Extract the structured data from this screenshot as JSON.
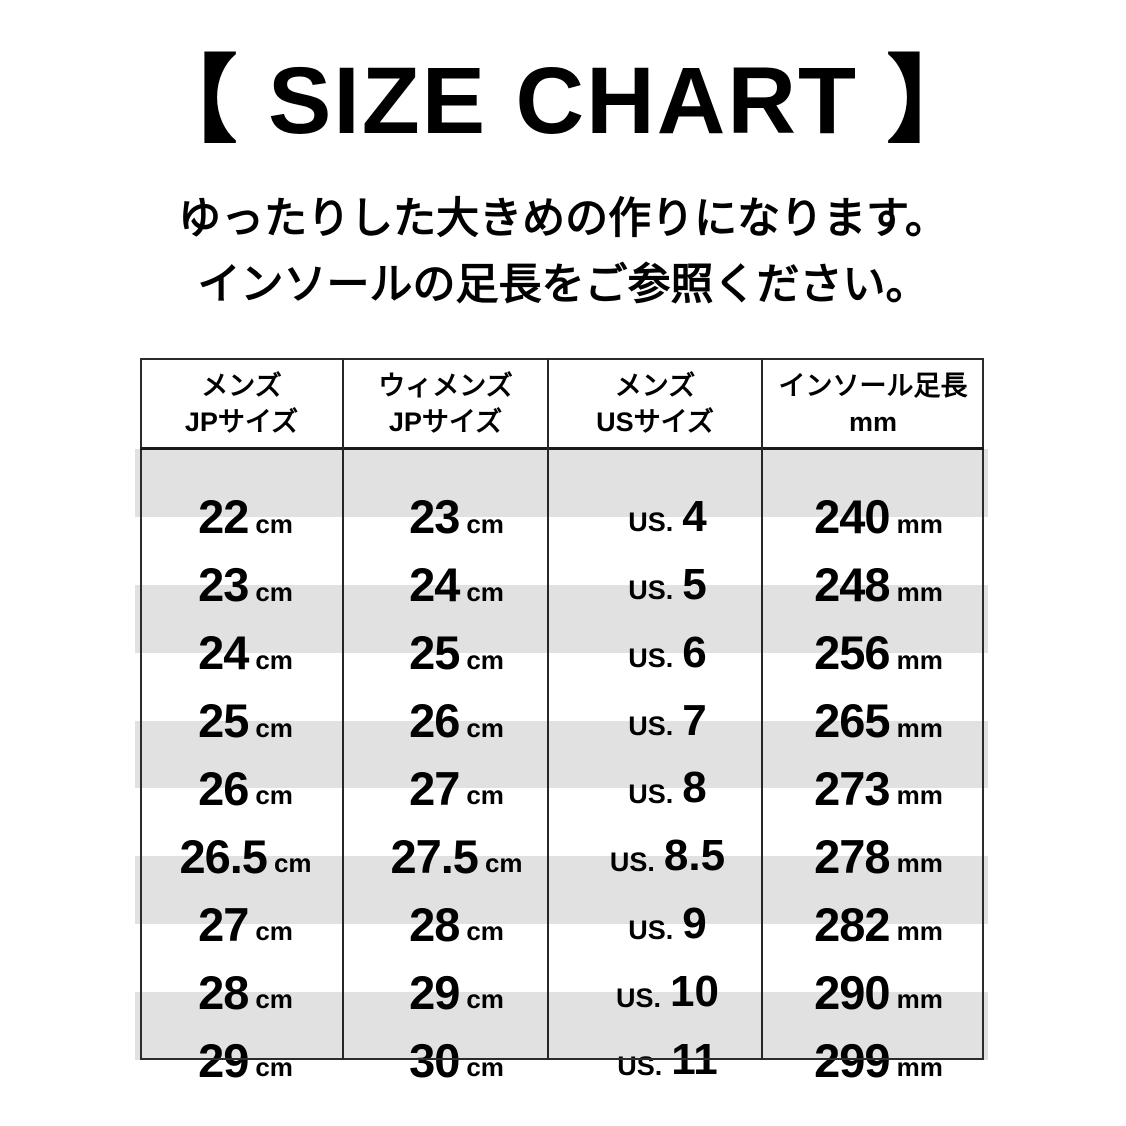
{
  "title": "【 SIZE CHART 】",
  "subtitle_lines": [
    "ゆったりした大きめの作りになります。",
    "インソールの足長をご参照ください。"
  ],
  "colors": {
    "background": "#ffffff",
    "stripe_gray": "#e1e1e1",
    "line_black": "#262626",
    "text": "#000000"
  },
  "table": {
    "headers": [
      {
        "line1": "メンズ",
        "line2": "JPサイズ"
      },
      {
        "line1": "ウィメンズ",
        "line2": "JPサイズ"
      },
      {
        "line1": "メンズ",
        "line2": "USサイズ"
      },
      {
        "line1": "インソール足長",
        "line2": "mm"
      }
    ],
    "rows": [
      {
        "mens_jp": "22",
        "mens_jp_unit": "cm",
        "womens_jp": "23",
        "womens_jp_unit": "cm",
        "us_prefix": "US.",
        "us": "4",
        "insole": "240",
        "insole_unit": "mm"
      },
      {
        "mens_jp": "23",
        "mens_jp_unit": "cm",
        "womens_jp": "24",
        "womens_jp_unit": "cm",
        "us_prefix": "US.",
        "us": "5",
        "insole": "248",
        "insole_unit": "mm"
      },
      {
        "mens_jp": "24",
        "mens_jp_unit": "cm",
        "womens_jp": "25",
        "womens_jp_unit": "cm",
        "us_prefix": "US.",
        "us": "6",
        "insole": "256",
        "insole_unit": "mm"
      },
      {
        "mens_jp": "25",
        "mens_jp_unit": "cm",
        "womens_jp": "26",
        "womens_jp_unit": "cm",
        "us_prefix": "US.",
        "us": "7",
        "insole": "265",
        "insole_unit": "mm"
      },
      {
        "mens_jp": "26",
        "mens_jp_unit": "cm",
        "womens_jp": "27",
        "womens_jp_unit": "cm",
        "us_prefix": "US.",
        "us": "8",
        "insole": "273",
        "insole_unit": "mm"
      },
      {
        "mens_jp": "26.5",
        "mens_jp_unit": "cm",
        "womens_jp": "27.5",
        "womens_jp_unit": "cm",
        "us_prefix": "US.",
        "us": "8.5",
        "insole": "278",
        "insole_unit": "mm"
      },
      {
        "mens_jp": "27",
        "mens_jp_unit": "cm",
        "womens_jp": "28",
        "womens_jp_unit": "cm",
        "us_prefix": "US.",
        "us": "9",
        "insole": "282",
        "insole_unit": "mm"
      },
      {
        "mens_jp": "28",
        "mens_jp_unit": "cm",
        "womens_jp": "29",
        "womens_jp_unit": "cm",
        "us_prefix": "US.",
        "us": "10",
        "insole": "290",
        "insole_unit": "mm"
      },
      {
        "mens_jp": "29",
        "mens_jp_unit": "cm",
        "womens_jp": "30",
        "womens_jp_unit": "cm",
        "us_prefix": "US.",
        "us": "11",
        "insole": "299",
        "insole_unit": "mm"
      }
    ]
  },
  "chart_data": {
    "type": "table",
    "title": "【 SIZE CHART 】",
    "notes": [
      "ゆったりした大きめの作りになります。",
      "インソールの足長をご参照ください。"
    ],
    "columns": [
      "メンズ JPサイズ",
      "ウィメンズ JPサイズ",
      "メンズ USサイズ",
      "インソール足長 mm"
    ],
    "rows": [
      [
        "22 cm",
        "23 cm",
        "US. 4",
        "240 mm"
      ],
      [
        "23 cm",
        "24 cm",
        "US. 5",
        "248 mm"
      ],
      [
        "24 cm",
        "25 cm",
        "US. 6",
        "256 mm"
      ],
      [
        "25 cm",
        "26 cm",
        "US. 7",
        "265 mm"
      ],
      [
        "26 cm",
        "27 cm",
        "US. 8",
        "273 mm"
      ],
      [
        "26.5 cm",
        "27.5 cm",
        "US. 8.5",
        "278 mm"
      ],
      [
        "27 cm",
        "28 cm",
        "US. 9",
        "282 mm"
      ],
      [
        "28 cm",
        "29 cm",
        "US. 10",
        "290 mm"
      ],
      [
        "29 cm",
        "30 cm",
        "US. 11",
        "299 mm"
      ]
    ],
    "layout": {
      "striped_rows": "odd rows gray #e1e1e1",
      "grid": "outer border + vertical column lines + header separator only"
    }
  }
}
